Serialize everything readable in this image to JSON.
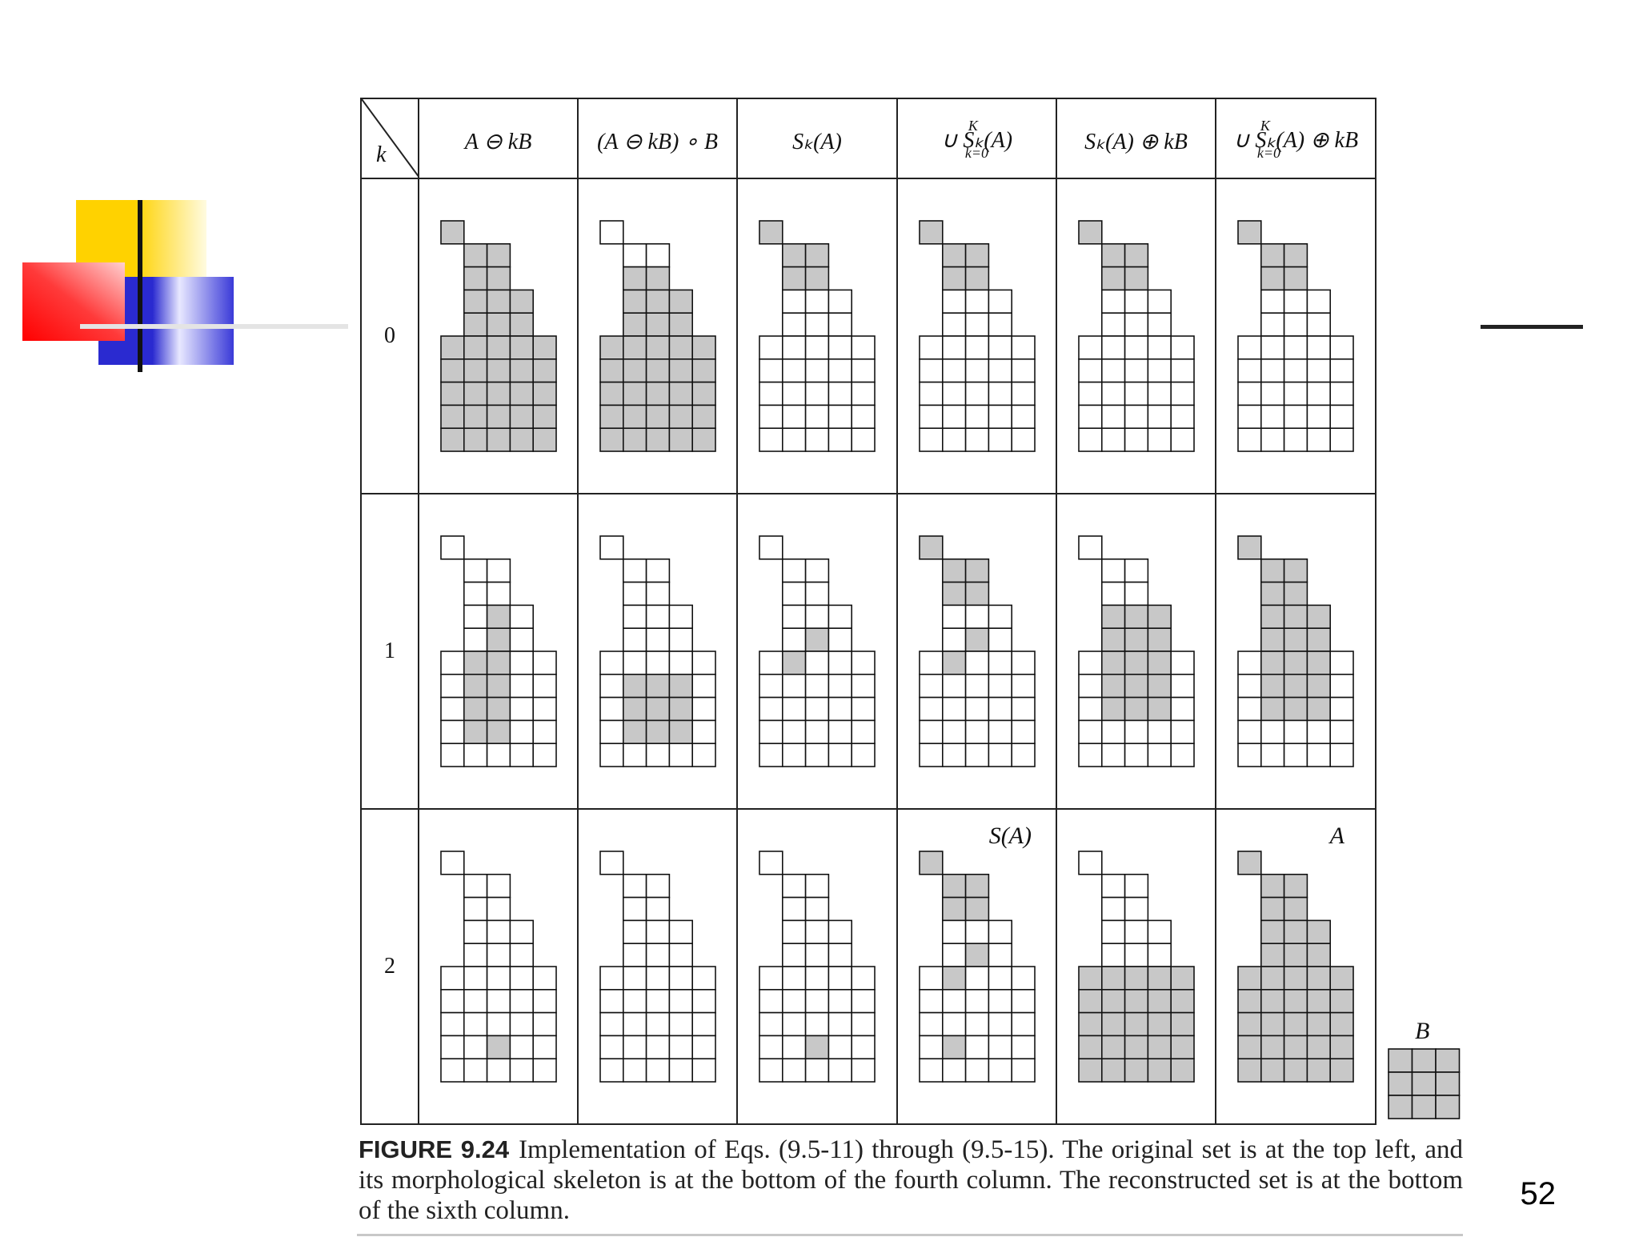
{
  "table": {
    "corner_label": "k",
    "headers": [
      {
        "main": "A ⊖ kB"
      },
      {
        "main": "(A ⊖ kB) ∘ B"
      },
      {
        "main": "Sₖ(A)"
      },
      {
        "main": "∪ Sₖ(A)",
        "sup": "K",
        "sub": "k=0"
      },
      {
        "main": "Sₖ(A) ⊕ kB"
      },
      {
        "main": "∪ Sₖ(A) ⊕ kB",
        "sup": "K",
        "sub": "k=0"
      }
    ],
    "row_labels": [
      "0",
      "1",
      "2"
    ],
    "annotations": {
      "skeleton": "S(A)",
      "reconstructed": "A"
    }
  },
  "shape": {
    "rows": 10,
    "cols": 5,
    "mask": [
      "1....",
      ".11..",
      ".11..",
      ".111.",
      ".111.",
      "11111",
      "11111",
      "11111",
      "11111",
      "11111"
    ]
  },
  "grids": [
    [
      [
        "1....",
        ".11..",
        ".11..",
        ".111.",
        ".111.",
        "11111",
        "11111",
        "11111",
        "11111",
        "11111"
      ],
      [
        "0....",
        ".00..",
        ".11..",
        ".111.",
        ".111.",
        "11111",
        "11111",
        "11111",
        "11111",
        "11111"
      ],
      [
        "1....",
        ".11..",
        ".11..",
        ".000.",
        ".000.",
        "00000",
        "00000",
        "00000",
        "00000",
        "00000"
      ],
      [
        "1....",
        ".11..",
        ".11..",
        ".000.",
        ".000.",
        "00000",
        "00000",
        "00000",
        "00000",
        "00000"
      ],
      [
        "1....",
        ".11..",
        ".11..",
        ".000.",
        ".000.",
        "00000",
        "00000",
        "00000",
        "00000",
        "00000"
      ],
      [
        "1....",
        ".11..",
        ".11..",
        ".000.",
        ".000.",
        "00000",
        "00000",
        "00000",
        "00000",
        "00000"
      ]
    ],
    [
      [
        "0....",
        ".00..",
        ".00..",
        ".010.",
        ".010.",
        "01100",
        "01100",
        "01100",
        "01100",
        "00000"
      ],
      [
        "0....",
        ".00..",
        ".00..",
        ".000.",
        ".000.",
        "00000",
        "01110",
        "01110",
        "01110",
        "00000"
      ],
      [
        "0....",
        ".00..",
        ".00..",
        ".000.",
        ".010.",
        "01000",
        "00000",
        "00000",
        "00000",
        "00000"
      ],
      [
        "1....",
        ".11..",
        ".11..",
        ".000.",
        ".010.",
        "01000",
        "00000",
        "00000",
        "00000",
        "00000"
      ],
      [
        "0....",
        ".00..",
        ".00..",
        ".111.",
        ".111.",
        "01110",
        "01110",
        "01110",
        "00000",
        "00000"
      ],
      [
        "1....",
        ".11..",
        ".11..",
        ".111.",
        ".111.",
        "01110",
        "01110",
        "01110",
        "00000",
        "00000"
      ]
    ],
    [
      [
        "0....",
        ".00..",
        ".00..",
        ".000.",
        ".000.",
        "00000",
        "00000",
        "00000",
        "00100",
        "00000"
      ],
      [
        "0....",
        ".00..",
        ".00..",
        ".000.",
        ".000.",
        "00000",
        "00000",
        "00000",
        "00000",
        "00000"
      ],
      [
        "0....",
        ".00..",
        ".00..",
        ".000.",
        ".000.",
        "00000",
        "00000",
        "00000",
        "00100",
        "00000"
      ],
      [
        "1....",
        ".11..",
        ".11..",
        ".000.",
        ".010.",
        "01000",
        "00000",
        "00000",
        "01000",
        "00000"
      ],
      [
        "0....",
        ".00..",
        ".00..",
        ".000.",
        ".000.",
        "11111",
        "11111",
        "11111",
        "11111",
        "11111"
      ],
      [
        "1....",
        ".11..",
        ".11..",
        ".111.",
        ".111.",
        "11111",
        "11111",
        "11111",
        "11111",
        "11111"
      ]
    ]
  ],
  "structuring_element": {
    "label": "B",
    "rows": 3,
    "cols": 3
  },
  "caption": {
    "label": "FIGURE 9.24",
    "text": "Implementation of Eqs. (9.5-11) through (9.5-15). The original set is at the top left, and its morphological skeleton is at the bottom of the fourth column. The reconstructed set is at the bottom of the sixth column."
  },
  "page_number": "52",
  "colors": {
    "fill": "#c8c8c8",
    "line": "#111111",
    "yellow": "#ffd200",
    "red": "#ff1a1a",
    "blue": "#2a2ad0"
  }
}
